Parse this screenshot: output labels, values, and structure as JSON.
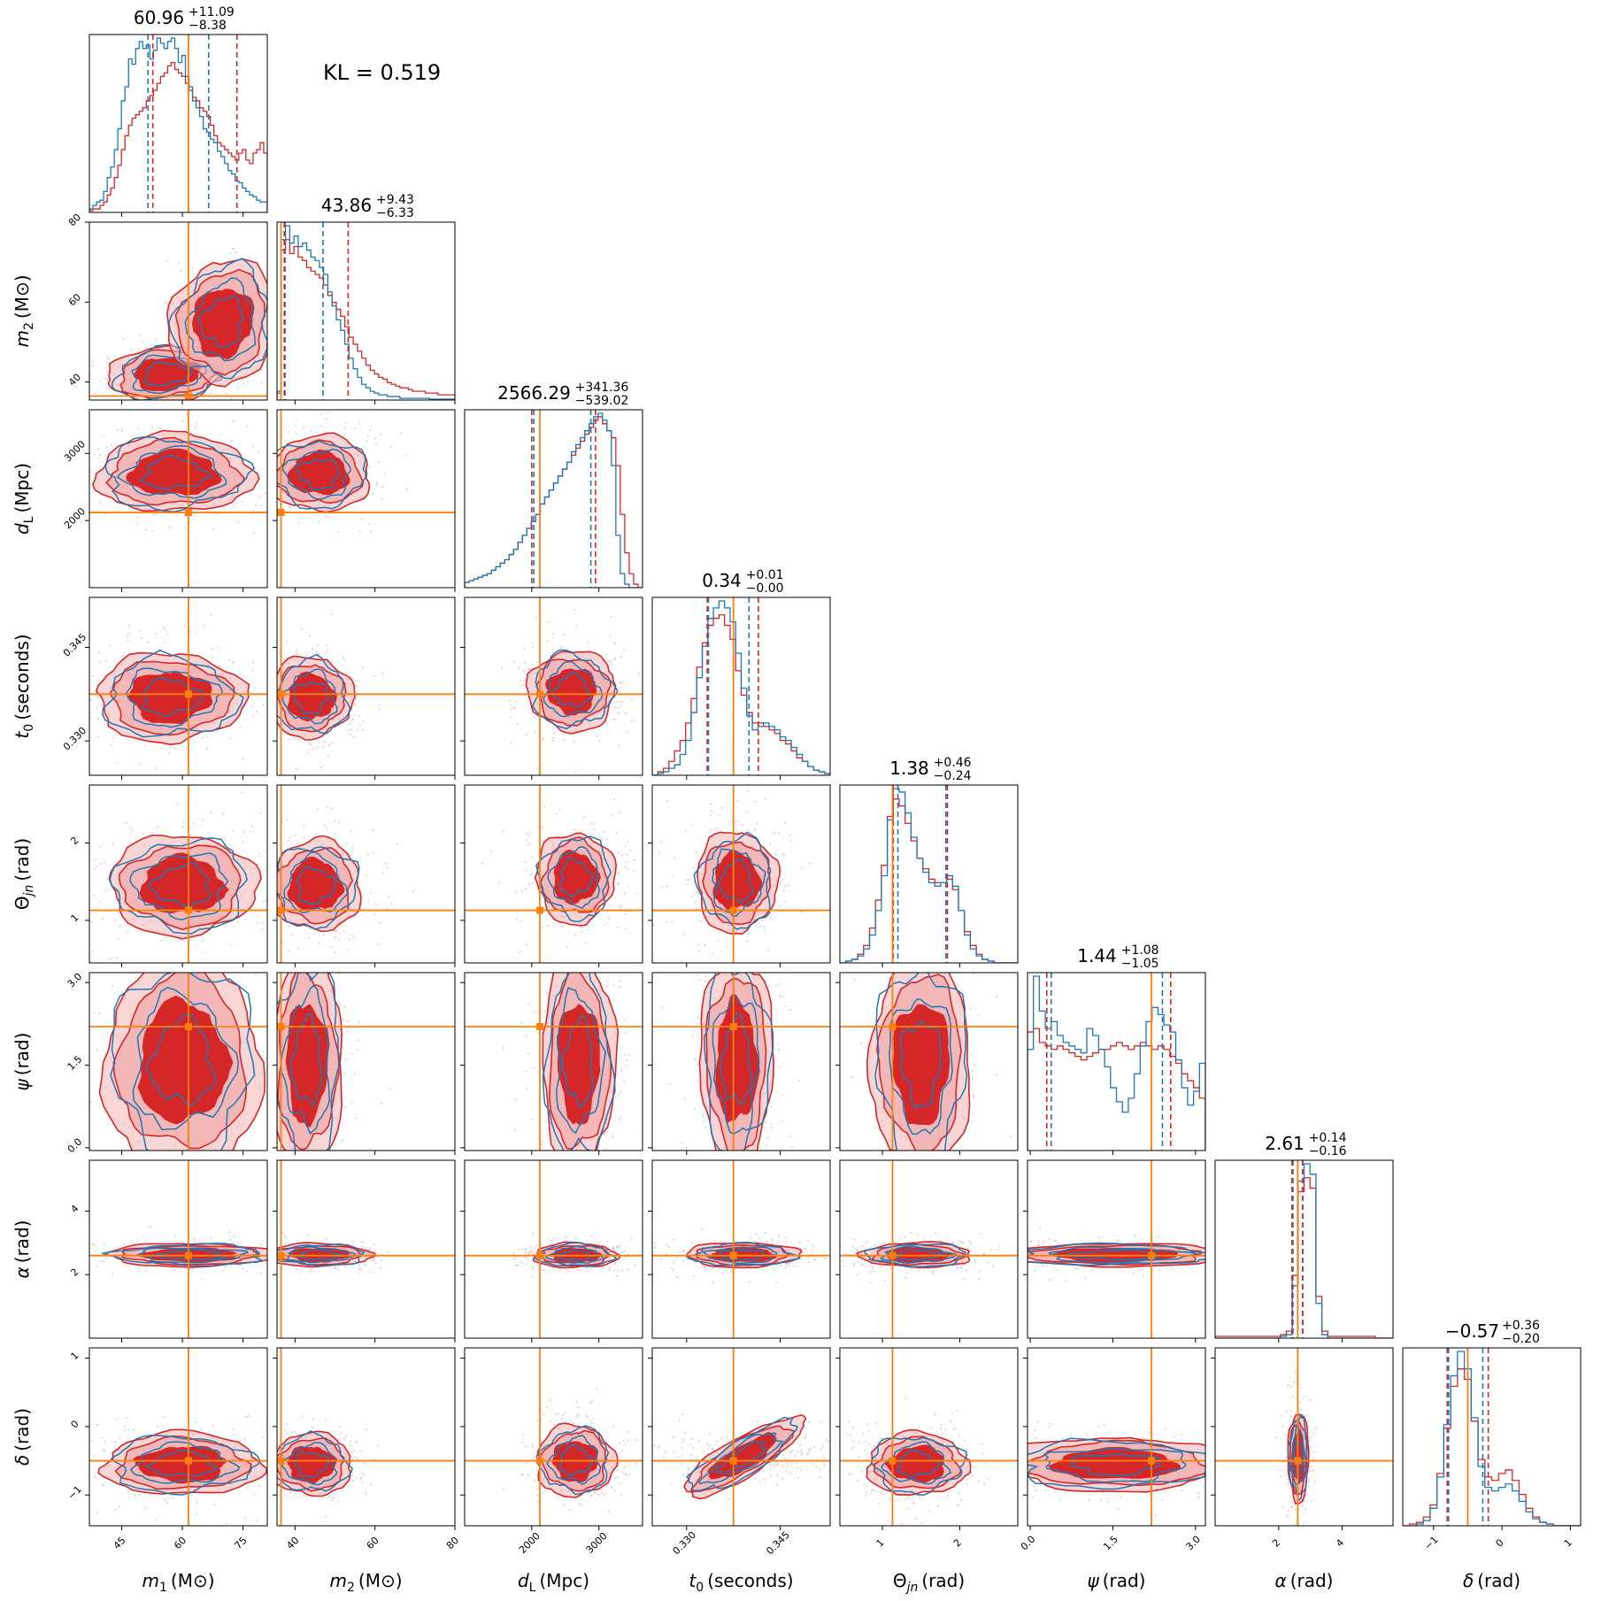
{
  "chart_data": {
    "type": "corner",
    "annotation": "KL = 0.519",
    "colors": {
      "series_a": "#1f77b4",
      "series_b": "#d62728",
      "truth": "#ff7f0e",
      "series_b_fill_dark": "#d62728",
      "series_b_fill_light": "#f2b4b4"
    },
    "parameters": [
      {
        "name": "m1",
        "symbol": "m",
        "sub": "1",
        "unit": "(M⊙)",
        "italic_symbol": true,
        "range": [
          37,
          81
        ],
        "ticks": [
          45,
          60,
          75
        ],
        "truth": 61.5,
        "stat": {
          "median": "60.96",
          "plus": "+11.09",
          "minus": "−8.38"
        },
        "quantiles_a": [
          51.5,
          66.5
        ],
        "quantiles_b": [
          52.7,
          73.5
        ]
      },
      {
        "name": "m2",
        "symbol": "m",
        "sub": "2",
        "unit": "(M⊙)",
        "italic_symbol": true,
        "range": [
          35.5,
          80
        ],
        "ticks": [
          40,
          60,
          80
        ],
        "truth": 36.5,
        "stat": {
          "median": "43.86",
          "plus": "+9.43",
          "minus": "−6.33"
        },
        "quantiles_a": [
          37.3,
          47.0
        ],
        "quantiles_b": [
          37.5,
          53.3
        ]
      },
      {
        "name": "dL",
        "symbol": "d",
        "sub": "L",
        "unit": "(Mpc)",
        "italic_symbol": true,
        "range": [
          1000,
          3650
        ],
        "ticks": [
          2000,
          3000
        ],
        "truth": 2120,
        "stat": {
          "median": "2566.29",
          "plus": "+341.36",
          "minus": "−539.02"
        },
        "quantiles_a": [
          2030,
          2880
        ],
        "quantiles_b": [
          2000,
          2950
        ]
      },
      {
        "name": "t0",
        "symbol": "t",
        "sub": "0",
        "unit": "(seconds)",
        "italic_symbol": true,
        "range": [
          0.3245,
          0.353
        ],
        "ticks": [
          0.33,
          0.345
        ],
        "tick_labels": [
          "0.330",
          "0.345"
        ],
        "truth": 0.3375,
        "stat": {
          "median": "0.34",
          "plus": "+0.01",
          "minus": "−0.00"
        },
        "quantiles_a": [
          0.3335,
          0.34
        ],
        "quantiles_b": [
          0.3333,
          0.3415
        ]
      },
      {
        "name": "theta_jn",
        "symbol": "Θ",
        "sub": "jn",
        "unit": "(rad)",
        "italic_symbol": false,
        "range": [
          0.45,
          2.75
        ],
        "ticks": [
          1,
          2
        ],
        "truth": 1.13,
        "stat": {
          "median": "1.38",
          "plus": "+0.46",
          "minus": "−0.24"
        },
        "quantiles_a": [
          1.2,
          1.82
        ],
        "quantiles_b": [
          1.14,
          1.84
        ]
      },
      {
        "name": "psi",
        "symbol": "ψ",
        "sub": "",
        "unit": "(rad)",
        "italic_symbol": true,
        "range": [
          -0.05,
          3.18
        ],
        "ticks": [
          0.0,
          1.5,
          3.0
        ],
        "tick_labels": [
          "0.0",
          "1.5",
          "3.0"
        ],
        "truth": 2.2,
        "stat": {
          "median": "1.44",
          "plus": "+1.08",
          "minus": "−1.05"
        },
        "quantiles_a": [
          0.38,
          2.4
        ],
        "quantiles_b": [
          0.3,
          2.55
        ]
      },
      {
        "name": "alpha",
        "symbol": "α",
        "sub": "",
        "unit": "(rad)",
        "italic_symbol": true,
        "range": [
          0,
          5.6
        ],
        "ticks": [
          2,
          4
        ],
        "truth": 2.6,
        "stat": {
          "median": "2.61",
          "plus": "+0.14",
          "minus": "−0.16"
        },
        "quantiles_a": [
          2.45,
          2.75
        ],
        "quantiles_b": [
          2.42,
          2.76
        ]
      },
      {
        "name": "delta",
        "symbol": "δ",
        "sub": "",
        "unit": "(rad)",
        "italic_symbol": true,
        "range": [
          -1.45,
          1.15
        ],
        "ticks": [
          -1,
          0,
          1
        ],
        "tick_labels": [
          "−1",
          "0",
          "1"
        ],
        "truth": -0.5,
        "stat": {
          "median": "−0.57",
          "plus": "+0.36",
          "minus": "−0.20"
        },
        "quantiles_a": [
          -0.78,
          -0.28
        ],
        "quantiles_b": [
          -0.8,
          -0.2
        ]
      }
    ],
    "histograms": {
      "m1": {
        "a": [
          0.02,
          0.04,
          0.06,
          0.07,
          0.12,
          0.2,
          0.26,
          0.36,
          0.48,
          0.64,
          0.72,
          0.88,
          0.85,
          0.94,
          0.98,
          0.94,
          0.96,
          0.88,
          0.93,
          1.0,
          0.97,
          0.94,
          0.98,
          1.0,
          0.94,
          0.86,
          0.9,
          0.78,
          0.72,
          0.64,
          0.6,
          0.55,
          0.48,
          0.46,
          0.42,
          0.4,
          0.35,
          0.32,
          0.28,
          0.24,
          0.22,
          0.18,
          0.17,
          0.14,
          0.12,
          0.1,
          0.09,
          0.07,
          0.06,
          0.06
        ],
        "b": [
          0.01,
          0.02,
          0.02,
          0.04,
          0.06,
          0.1,
          0.14,
          0.2,
          0.27,
          0.36,
          0.44,
          0.5,
          0.54,
          0.56,
          0.58,
          0.6,
          0.64,
          0.67,
          0.7,
          0.74,
          0.78,
          0.8,
          0.84,
          0.86,
          0.82,
          0.8,
          0.78,
          0.74,
          0.7,
          0.66,
          0.64,
          0.6,
          0.58,
          0.55,
          0.5,
          0.44,
          0.4,
          0.38,
          0.36,
          0.34,
          0.32,
          0.3,
          0.34,
          0.36,
          0.3,
          0.28,
          0.34,
          0.36,
          0.4,
          0.34
        ]
      },
      "m2": {
        "a": [
          0.05,
          0.92,
          1.0,
          0.9,
          0.94,
          0.88,
          0.9,
          0.86,
          0.82,
          0.8,
          0.76,
          0.72,
          0.62,
          0.54,
          0.46,
          0.4,
          0.32,
          0.24,
          0.18,
          0.13,
          0.09,
          0.07,
          0.05,
          0.04,
          0.03,
          0.03,
          0.02,
          0.02,
          0.02,
          0.01,
          0.01,
          0.01,
          0.01,
          0.01,
          0.01,
          0.01,
          0.005,
          0.005,
          0.005,
          0.005,
          0.005,
          0.005
        ],
        "b": [
          0.04,
          0.86,
          0.92,
          0.84,
          0.88,
          0.82,
          0.8,
          0.76,
          0.74,
          0.72,
          0.7,
          0.66,
          0.6,
          0.56,
          0.52,
          0.48,
          0.42,
          0.36,
          0.32,
          0.28,
          0.24,
          0.2,
          0.17,
          0.15,
          0.13,
          0.12,
          0.1,
          0.09,
          0.08,
          0.07,
          0.07,
          0.06,
          0.05,
          0.05,
          0.05,
          0.04,
          0.04,
          0.04,
          0.03,
          0.03,
          0.03,
          0.03
        ]
      },
      "dL": {
        "a": [
          0.03,
          0.04,
          0.05,
          0.06,
          0.07,
          0.08,
          0.1,
          0.12,
          0.14,
          0.16,
          0.19,
          0.22,
          0.26,
          0.3,
          0.34,
          0.38,
          0.42,
          0.48,
          0.52,
          0.56,
          0.6,
          0.64,
          0.68,
          0.72,
          0.78,
          0.82,
          0.86,
          0.9,
          0.94,
          0.98,
          1.0,
          0.96,
          0.9,
          0.7,
          0.3,
          0.08,
          0.02,
          0.0,
          0.0,
          0.0
        ],
        "b": [
          0.03,
          0.04,
          0.05,
          0.06,
          0.07,
          0.08,
          0.1,
          0.12,
          0.14,
          0.16,
          0.19,
          0.22,
          0.26,
          0.3,
          0.34,
          0.38,
          0.42,
          0.48,
          0.52,
          0.56,
          0.6,
          0.64,
          0.68,
          0.72,
          0.76,
          0.8,
          0.84,
          0.88,
          0.92,
          0.96,
          0.98,
          0.94,
          0.9,
          0.86,
          0.7,
          0.42,
          0.2,
          0.08,
          0.02,
          0.0
        ]
      },
      "t0": {
        "a": [
          0.0,
          0.01,
          0.02,
          0.04,
          0.06,
          0.12,
          0.2,
          0.36,
          0.56,
          0.74,
          0.9,
          0.96,
          1.0,
          0.96,
          0.88,
          0.7,
          0.5,
          0.34,
          0.26,
          0.28,
          0.3,
          0.28,
          0.26,
          0.22,
          0.2,
          0.16,
          0.12,
          0.08,
          0.05,
          0.03,
          0.02,
          0.01
        ],
        "b": [
          0.0,
          0.02,
          0.04,
          0.08,
          0.14,
          0.2,
          0.3,
          0.44,
          0.62,
          0.76,
          0.86,
          0.9,
          0.92,
          0.86,
          0.78,
          0.6,
          0.46,
          0.36,
          0.3,
          0.3,
          0.28,
          0.26,
          0.24,
          0.2,
          0.18,
          0.14,
          0.1,
          0.08,
          0.05,
          0.03,
          0.02,
          0.01
        ]
      },
      "theta_jn": {
        "a": [
          0.0,
          0.01,
          0.02,
          0.04,
          0.08,
          0.16,
          0.3,
          0.5,
          0.82,
          1.0,
          0.98,
          0.86,
          0.72,
          0.6,
          0.52,
          0.46,
          0.44,
          0.46,
          0.5,
          0.44,
          0.3,
          0.16,
          0.08,
          0.04,
          0.02,
          0.01,
          0.0,
          0.0,
          0.0,
          0.0
        ],
        "b": [
          0.0,
          0.01,
          0.02,
          0.05,
          0.1,
          0.2,
          0.36,
          0.56,
          0.84,
          0.94,
          0.9,
          0.8,
          0.7,
          0.6,
          0.54,
          0.48,
          0.46,
          0.46,
          0.48,
          0.42,
          0.3,
          0.18,
          0.1,
          0.05,
          0.02,
          0.01,
          0.0,
          0.0,
          0.0,
          0.0
        ]
      },
      "psi": {
        "a": [
          0.58,
          1.0,
          0.8,
          0.7,
          0.74,
          0.66,
          0.62,
          0.6,
          0.58,
          0.56,
          0.7,
          0.66,
          0.58,
          0.48,
          0.36,
          0.28,
          0.22,
          0.3,
          0.44,
          0.6,
          0.74,
          0.82,
          0.78,
          0.72,
          0.68,
          0.52,
          0.36,
          0.26,
          0.34,
          0.5
        ],
        "b": [
          0.68,
          0.7,
          0.62,
          0.6,
          0.58,
          0.6,
          0.58,
          0.56,
          0.54,
          0.52,
          0.54,
          0.56,
          0.58,
          0.58,
          0.6,
          0.62,
          0.6,
          0.58,
          0.6,
          0.62,
          0.6,
          0.58,
          0.6,
          0.58,
          0.54,
          0.5,
          0.44,
          0.4,
          0.36,
          0.3
        ]
      },
      "alpha": {
        "a": [
          0,
          0,
          0,
          0,
          0,
          0,
          0,
          0,
          0,
          0,
          0,
          0.01,
          0.02,
          0.3,
          0.9,
          1.0,
          0.94,
          0.2,
          0.02,
          0.0,
          0,
          0,
          0,
          0,
          0,
          0,
          0,
          0,
          0,
          0
        ],
        "b": [
          0.01,
          0.01,
          0.01,
          0.01,
          0.01,
          0.01,
          0.01,
          0.01,
          0.01,
          0.01,
          0.01,
          0.02,
          0.04,
          0.36,
          0.84,
          0.92,
          0.86,
          0.24,
          0.04,
          0.01,
          0.01,
          0.01,
          0.01,
          0.01,
          0.01,
          0.01,
          0.01,
          0.0,
          0.0,
          0.0
        ]
      },
      "delta": {
        "a": [
          0,
          0,
          0.01,
          0.03,
          0.1,
          0.28,
          0.58,
          0.86,
          1.0,
          0.9,
          0.62,
          0.34,
          0.22,
          0.2,
          0.22,
          0.24,
          0.2,
          0.14,
          0.08,
          0.04,
          0.02,
          0.01,
          0,
          0,
          0,
          0
        ],
        "b": [
          0,
          0.01,
          0.02,
          0.05,
          0.12,
          0.3,
          0.56,
          0.8,
          0.9,
          0.84,
          0.6,
          0.38,
          0.28,
          0.26,
          0.3,
          0.32,
          0.26,
          0.18,
          0.1,
          0.05,
          0.02,
          0.01,
          0,
          0,
          0,
          0
        ]
      }
    },
    "pair_blobs": {
      "1_0": [
        {
          "cx": 56,
          "cy": 42,
          "rx": 11,
          "ry": 5.5,
          "rot": -0.1
        },
        {
          "cx": 70,
          "cy": 55,
          "rx": 10,
          "ry": 12,
          "rot": 0.3
        }
      ],
      "2_0": [
        {
          "cx": 58,
          "cy": 2700,
          "rx": 15,
          "ry": 450,
          "rot": 0
        }
      ],
      "2_1": [
        {
          "cx": 46,
          "cy": 2700,
          "rx": 10,
          "ry": 430,
          "rot": 0
        }
      ],
      "3_0": [
        {
          "cx": 57,
          "cy": 0.337,
          "rx": 14,
          "ry": 0.0055,
          "rot": 0
        }
      ],
      "3_1": [
        {
          "cx": 44,
          "cy": 0.337,
          "rx": 8,
          "ry": 0.005,
          "rot": 0
        }
      ],
      "3_2": [
        {
          "cx": 2600,
          "cy": 0.338,
          "rx": 500,
          "ry": 0.005,
          "rot": 0
        }
      ],
      "4_0": [
        {
          "cx": 60,
          "cy": 1.45,
          "rx": 14,
          "ry": 0.5,
          "rot": 0
        }
      ],
      "4_1": [
        {
          "cx": 45,
          "cy": 1.45,
          "rx": 9,
          "ry": 0.45,
          "rot": 0
        }
      ],
      "4_2": [
        {
          "cx": 2650,
          "cy": 1.55,
          "rx": 450,
          "ry": 0.45,
          "rot": 0
        }
      ],
      "4_3": [
        {
          "cx": 0.338,
          "cy": 1.5,
          "rx": 0.005,
          "ry": 0.5,
          "rot": 0
        }
      ],
      "5_0": [
        {
          "cx": 60,
          "cy": 1.55,
          "rx": 15,
          "ry": 1.5,
          "rot": 0
        }
      ],
      "5_1": [
        {
          "cx": 43,
          "cy": 1.55,
          "rx": 7,
          "ry": 1.5,
          "rot": 0
        }
      ],
      "5_2": [
        {
          "cx": 2700,
          "cy": 1.55,
          "rx": 420,
          "ry": 1.5,
          "rot": 0
        }
      ],
      "5_3": [
        {
          "cx": 0.338,
          "cy": 1.55,
          "rx": 0.0045,
          "ry": 1.5,
          "rot": 0
        }
      ],
      "5_4": [
        {
          "cx": 1.5,
          "cy": 1.55,
          "rx": 0.5,
          "ry": 1.5,
          "rot": 0
        }
      ],
      "6_0": [
        {
          "cx": 62,
          "cy": 2.62,
          "rx": 16,
          "ry": 0.28,
          "rot": 0
        }
      ],
      "6_1": [
        {
          "cx": 46,
          "cy": 2.62,
          "rx": 10,
          "ry": 0.28,
          "rot": 0
        }
      ],
      "6_2": [
        {
          "cx": 2650,
          "cy": 2.6,
          "rx": 480,
          "ry": 0.3,
          "rot": 0
        }
      ],
      "6_3": [
        {
          "cx": 0.339,
          "cy": 2.62,
          "rx": 0.007,
          "ry": 0.3,
          "rot": 0
        }
      ],
      "6_4": [
        {
          "cx": 1.45,
          "cy": 2.62,
          "rx": 0.55,
          "ry": 0.3,
          "rot": 0
        }
      ],
      "6_5": [
        {
          "cx": 1.55,
          "cy": 2.62,
          "rx": 1.55,
          "ry": 0.28,
          "rot": 0
        }
      ],
      "7_0": [
        {
          "cx": 60,
          "cy": -0.55,
          "rx": 15,
          "ry": 0.35,
          "rot": 0
        }
      ],
      "7_1": [
        {
          "cx": 44,
          "cy": -0.55,
          "rx": 8,
          "ry": 0.35,
          "rot": 0
        }
      ],
      "7_2": [
        {
          "cx": 2650,
          "cy": -0.5,
          "rx": 450,
          "ry": 0.4,
          "rot": 0
        }
      ],
      "7_3": [
        {
          "cx": 0.339,
          "cy": -0.45,
          "rx": 0.0085,
          "ry": 0.22,
          "rot": -0.55
        }
      ],
      "7_4": [
        {
          "cx": 1.45,
          "cy": -0.55,
          "rx": 0.5,
          "ry": 0.35,
          "rot": 0
        }
      ],
      "7_5": [
        {
          "cx": 1.55,
          "cy": -0.55,
          "rx": 1.55,
          "ry": 0.3,
          "rot": 0
        }
      ],
      "7_6": [
        {
          "cx": 2.62,
          "cy": -0.45,
          "rx": 0.25,
          "ry": 0.5,
          "rot": 0
        }
      ]
    }
  }
}
